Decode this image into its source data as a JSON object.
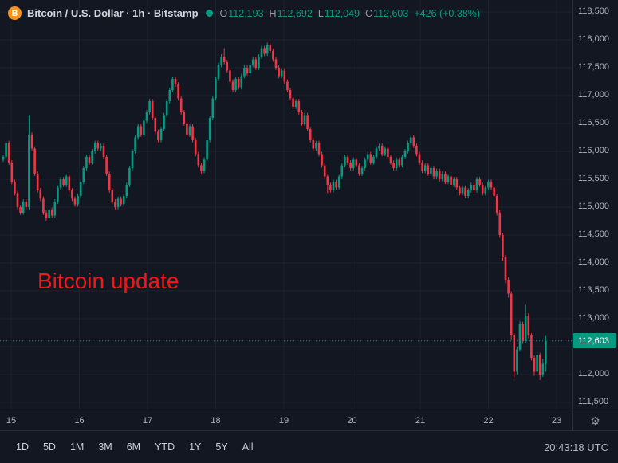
{
  "header": {
    "symbol_title": "Bitcoin / U.S. Dollar · 1h · Bitstamp",
    "ohlc": {
      "o_label": "O",
      "o": "112,193",
      "h_label": "H",
      "h": "112,692",
      "l_label": "L",
      "l": "112,049",
      "c_label": "C",
      "c": "112,603",
      "change": "+426 (+0.38%)"
    }
  },
  "annotation": {
    "text": "Bitcoin update"
  },
  "time_axis": {
    "labels": [
      "15",
      "16",
      "17",
      "18",
      "19",
      "20",
      "21",
      "22",
      "23"
    ]
  },
  "toolbar": {
    "ranges": [
      "1D",
      "5D",
      "1M",
      "3M",
      "6M",
      "YTD",
      "1Y",
      "5Y",
      "All"
    ],
    "clock": "20:43:18 UTC"
  },
  "icons": {
    "bitcoin_glyph": "B",
    "gear_glyph": "⚙"
  },
  "colors": {
    "bg": "#131722",
    "grid": "#1e222d",
    "border": "#2a2e39",
    "up": "#089981",
    "down": "#f23645",
    "tag_bg": "#089981",
    "axis_text": "#b2b5be",
    "annotation_red": "#f51717",
    "bitcoin_orange": "#f7931a"
  },
  "chart_data": {
    "type": "candlestick",
    "title": "Bitcoin / U.S. Dollar",
    "interval": "1h",
    "exchange": "Bitstamp",
    "current_bar": {
      "open": 112193,
      "high": 112692,
      "low": 112049,
      "close": 112603,
      "change": 426,
      "change_pct": 0.38
    },
    "last_close": 112603,
    "ylim": [
      111371,
      118714
    ],
    "price_ticks": [
      118500,
      118000,
      117500,
      117000,
      116500,
      116000,
      115500,
      115000,
      114500,
      114000,
      113500,
      113000,
      112500,
      112000,
      111500
    ],
    "day_labels": [
      "15",
      "16",
      "17",
      "18",
      "19",
      "20",
      "21",
      "22",
      "23"
    ],
    "candles": [
      [
        115850,
        115940,
        115810,
        115900
      ],
      [
        115900,
        116190,
        115860,
        116150
      ],
      [
        116150,
        116190,
        115760,
        115800
      ],
      [
        115800,
        115840,
        115410,
        115450
      ],
      [
        115450,
        115490,
        115210,
        115250
      ],
      [
        115250,
        115290,
        114960,
        115000
      ],
      [
        115000,
        115040,
        114860,
        114900
      ],
      [
        114900,
        115140,
        114860,
        115100
      ],
      [
        115100,
        115140,
        114960,
        115000
      ],
      [
        115000,
        116650,
        114950,
        116300
      ],
      [
        116300,
        116340,
        116010,
        116050
      ],
      [
        116050,
        116090,
        115560,
        115600
      ],
      [
        115600,
        115640,
        115260,
        115300
      ],
      [
        115300,
        115340,
        115110,
        115150
      ],
      [
        115150,
        115190,
        114860,
        114900
      ],
      [
        114900,
        114940,
        114760,
        114800
      ],
      [
        114800,
        114990,
        114760,
        114950
      ],
      [
        114950,
        114990,
        114810,
        114850
      ],
      [
        114850,
        115140,
        114810,
        115100
      ],
      [
        115100,
        115390,
        115060,
        115350
      ],
      [
        115350,
        115540,
        115310,
        115500
      ],
      [
        115500,
        115540,
        115360,
        115400
      ],
      [
        115400,
        115590,
        115360,
        115550
      ],
      [
        115550,
        115590,
        115260,
        115300
      ],
      [
        115300,
        115340,
        115110,
        115150
      ],
      [
        115150,
        115190,
        115010,
        115050
      ],
      [
        115050,
        115240,
        115010,
        115200
      ],
      [
        115200,
        115490,
        115160,
        115450
      ],
      [
        115450,
        115740,
        115410,
        115700
      ],
      [
        115700,
        115940,
        115660,
        115900
      ],
      [
        115900,
        115940,
        115760,
        115800
      ],
      [
        115800,
        116040,
        115760,
        116000
      ],
      [
        116000,
        116190,
        115960,
        116150
      ],
      [
        116150,
        116190,
        116010,
        116050
      ],
      [
        116050,
        116140,
        116010,
        116100
      ],
      [
        116100,
        116140,
        115860,
        115900
      ],
      [
        115900,
        115940,
        115560,
        115600
      ],
      [
        115600,
        115640,
        115260,
        115300
      ],
      [
        115300,
        115340,
        115060,
        115100
      ],
      [
        115100,
        115140,
        114960,
        115000
      ],
      [
        115000,
        115190,
        114960,
        115150
      ],
      [
        115150,
        115190,
        115010,
        115050
      ],
      [
        115050,
        115240,
        115010,
        115200
      ],
      [
        115200,
        115440,
        115160,
        115400
      ],
      [
        115400,
        115740,
        115360,
        115700
      ],
      [
        115700,
        116040,
        115660,
        116000
      ],
      [
        116000,
        116290,
        115960,
        116250
      ],
      [
        116250,
        116490,
        116210,
        116450
      ],
      [
        116450,
        116490,
        116260,
        116300
      ],
      [
        116300,
        116590,
        116260,
        116550
      ],
      [
        116550,
        116740,
        116510,
        116700
      ],
      [
        116700,
        116940,
        116660,
        116900
      ],
      [
        116900,
        116940,
        116560,
        116600
      ],
      [
        116600,
        116640,
        116310,
        116350
      ],
      [
        116350,
        116390,
        116160,
        116200
      ],
      [
        116200,
        116440,
        116160,
        116400
      ],
      [
        116400,
        116690,
        116360,
        116650
      ],
      [
        116650,
        116940,
        116610,
        116900
      ],
      [
        116900,
        117140,
        116860,
        117100
      ],
      [
        117100,
        117340,
        117060,
        117300
      ],
      [
        117300,
        117340,
        117160,
        117200
      ],
      [
        117200,
        117240,
        116910,
        116950
      ],
      [
        116950,
        116990,
        116660,
        116700
      ],
      [
        116700,
        116740,
        116460,
        116500
      ],
      [
        116500,
        116540,
        116260,
        116300
      ],
      [
        116300,
        116490,
        116260,
        116450
      ],
      [
        116450,
        116490,
        116160,
        116200
      ],
      [
        116200,
        116240,
        115910,
        115950
      ],
      [
        115950,
        115990,
        115710,
        115750
      ],
      [
        115750,
        115790,
        115600,
        115650
      ],
      [
        115650,
        115890,
        115610,
        115850
      ],
      [
        115850,
        116240,
        115810,
        116200
      ],
      [
        116200,
        116640,
        116160,
        116600
      ],
      [
        116600,
        116990,
        116560,
        116950
      ],
      [
        116950,
        117340,
        116910,
        117300
      ],
      [
        117300,
        117590,
        117260,
        117550
      ],
      [
        117550,
        117740,
        117510,
        117700
      ],
      [
        117700,
        117850,
        117560,
        117600
      ],
      [
        117600,
        117640,
        117410,
        117450
      ],
      [
        117450,
        117490,
        117210,
        117250
      ],
      [
        117250,
        117290,
        117060,
        117100
      ],
      [
        117100,
        117340,
        117060,
        117300
      ],
      [
        117300,
        117340,
        117110,
        117150
      ],
      [
        117150,
        117390,
        117110,
        117350
      ],
      [
        117350,
        117540,
        117310,
        117500
      ],
      [
        117500,
        117540,
        117360,
        117400
      ],
      [
        117400,
        117590,
        117360,
        117550
      ],
      [
        117550,
        117690,
        117510,
        117650
      ],
      [
        117650,
        117690,
        117460,
        117500
      ],
      [
        117500,
        117740,
        117460,
        117700
      ],
      [
        117700,
        117890,
        117660,
        117850
      ],
      [
        117850,
        117890,
        117710,
        117750
      ],
      [
        117750,
        117950,
        117710,
        117900
      ],
      [
        117900,
        117940,
        117760,
        117800
      ],
      [
        117800,
        117840,
        117610,
        117650
      ],
      [
        117650,
        117690,
        117460,
        117500
      ],
      [
        117500,
        117540,
        117310,
        117350
      ],
      [
        117350,
        117490,
        117310,
        117450
      ],
      [
        117450,
        117490,
        117210,
        117250
      ],
      [
        117250,
        117290,
        117060,
        117100
      ],
      [
        117100,
        117140,
        116910,
        116950
      ],
      [
        116950,
        116990,
        116760,
        116800
      ],
      [
        116800,
        116940,
        116760,
        116900
      ],
      [
        116900,
        116940,
        116660,
        116700
      ],
      [
        116700,
        116740,
        116460,
        116500
      ],
      [
        116500,
        116690,
        116460,
        116650
      ],
      [
        116650,
        116690,
        116360,
        116400
      ],
      [
        116400,
        116440,
        116160,
        116200
      ],
      [
        116200,
        116240,
        116010,
        116050
      ],
      [
        116050,
        116190,
        116010,
        116150
      ],
      [
        116150,
        116190,
        115910,
        115950
      ],
      [
        115950,
        115990,
        115710,
        115750
      ],
      [
        115750,
        115790,
        115510,
        115550
      ],
      [
        115550,
        115590,
        115250,
        115400
      ],
      [
        115400,
        115440,
        115260,
        115300
      ],
      [
        115300,
        115490,
        115260,
        115450
      ],
      [
        115450,
        115490,
        115310,
        115350
      ],
      [
        115350,
        115590,
        115310,
        115550
      ],
      [
        115550,
        115790,
        115510,
        115750
      ],
      [
        115750,
        115940,
        115710,
        115900
      ],
      [
        115900,
        115940,
        115760,
        115800
      ],
      [
        115800,
        115840,
        115660,
        115700
      ],
      [
        115700,
        115890,
        115660,
        115850
      ],
      [
        115850,
        115890,
        115710,
        115750
      ],
      [
        115750,
        115790,
        115560,
        115600
      ],
      [
        115600,
        115740,
        115560,
        115700
      ],
      [
        115700,
        115890,
        115660,
        115850
      ],
      [
        115850,
        115990,
        115810,
        115950
      ],
      [
        115950,
        115990,
        115760,
        115800
      ],
      [
        115800,
        115940,
        115760,
        115900
      ],
      [
        115900,
        116090,
        115860,
        116050
      ],
      [
        116050,
        116140,
        116010,
        116100
      ],
      [
        116100,
        116140,
        115910,
        115950
      ],
      [
        115950,
        116090,
        115910,
        116050
      ],
      [
        116050,
        116090,
        115860,
        115900
      ],
      [
        115900,
        115940,
        115760,
        115800
      ],
      [
        115800,
        115840,
        115660,
        115700
      ],
      [
        115700,
        115890,
        115660,
        115850
      ],
      [
        115850,
        115890,
        115710,
        115750
      ],
      [
        115750,
        115940,
        115710,
        115900
      ],
      [
        115900,
        116040,
        115860,
        116000
      ],
      [
        116000,
        116190,
        115960,
        116150
      ],
      [
        116150,
        116290,
        116110,
        116250
      ],
      [
        116250,
        116290,
        116060,
        116100
      ],
      [
        116100,
        116140,
        115910,
        115950
      ],
      [
        115950,
        115990,
        115760,
        115800
      ],
      [
        115800,
        115840,
        115610,
        115650
      ],
      [
        115650,
        115790,
        115610,
        115750
      ],
      [
        115750,
        115790,
        115560,
        115600
      ],
      [
        115600,
        115740,
        115560,
        115700
      ],
      [
        115700,
        115740,
        115510,
        115550
      ],
      [
        115550,
        115690,
        115510,
        115650
      ],
      [
        115650,
        115690,
        115460,
        115500
      ],
      [
        115500,
        115640,
        115460,
        115600
      ],
      [
        115600,
        115640,
        115410,
        115450
      ],
      [
        115450,
        115590,
        115410,
        115550
      ],
      [
        115550,
        115590,
        115360,
        115400
      ],
      [
        115400,
        115540,
        115360,
        115500
      ],
      [
        115500,
        115540,
        115310,
        115350
      ],
      [
        115350,
        115390,
        115210,
        115250
      ],
      [
        115250,
        115390,
        115210,
        115350
      ],
      [
        115350,
        115390,
        115160,
        115200
      ],
      [
        115200,
        115340,
        115160,
        115300
      ],
      [
        115300,
        115440,
        115260,
        115400
      ],
      [
        115400,
        115440,
        115260,
        115300
      ],
      [
        115300,
        115540,
        115260,
        115500
      ],
      [
        115500,
        115540,
        115360,
        115400
      ],
      [
        115400,
        115440,
        115210,
        115250
      ],
      [
        115250,
        115390,
        115210,
        115350
      ],
      [
        115350,
        115490,
        115310,
        115450
      ],
      [
        115450,
        115490,
        115310,
        115350
      ],
      [
        115350,
        115390,
        115150,
        115200
      ],
      [
        115200,
        115240,
        114850,
        114900
      ],
      [
        114900,
        114940,
        114450,
        114500
      ],
      [
        114500,
        114540,
        114040,
        114100
      ],
      [
        114100,
        114140,
        113640,
        113700
      ],
      [
        113700,
        113740,
        113380,
        113450
      ],
      [
        113450,
        113490,
        112620,
        112700
      ],
      [
        112700,
        112740,
        111950,
        112050
      ],
      [
        112050,
        112500,
        112000,
        112450
      ],
      [
        112450,
        112960,
        112410,
        112900
      ],
      [
        112900,
        112950,
        112550,
        112600
      ],
      [
        112600,
        113250,
        112560,
        113050
      ],
      [
        113050,
        113100,
        112650,
        112700
      ],
      [
        112700,
        112740,
        112250,
        112300
      ],
      [
        112300,
        112340,
        111980,
        112050
      ],
      [
        112050,
        112400,
        112000,
        112350
      ],
      [
        112350,
        112390,
        111900,
        112000
      ],
      [
        112000,
        112280,
        111960,
        112193
      ],
      [
        112193,
        112692,
        112049,
        112603
      ]
    ]
  }
}
